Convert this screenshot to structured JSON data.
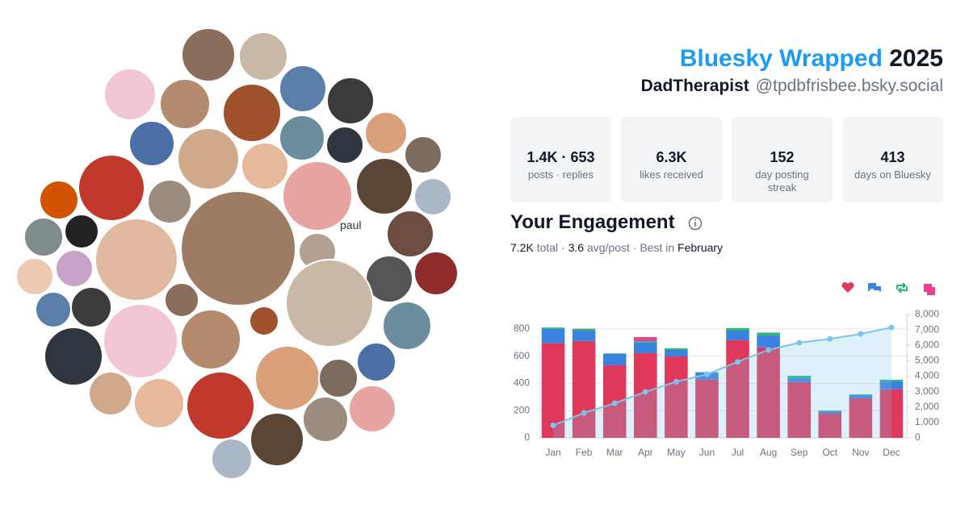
{
  "header": {
    "title": "Bluesky Wrapped",
    "year": "2025",
    "display_name": "DadTherapist",
    "handle": "@tpdbfrisbee.bsky.social"
  },
  "stats": [
    {
      "value": "1.4K · 653",
      "label": "posts · replies"
    },
    {
      "value": "6.3K",
      "label": "likes received"
    },
    {
      "value": "152",
      "label": "day posting streak"
    },
    {
      "value": "413",
      "label": "days on Bluesky"
    }
  ],
  "avatars": {
    "broken_image_alt": "paul"
  },
  "engagement": {
    "title": "Your Engagement",
    "summary": [
      "7.2K",
      " total · ",
      "3.6",
      " avg/post · Best in ",
      "February"
    ]
  },
  "chart_data": {
    "type": "bar",
    "stacked": true,
    "categories": [
      "Jan",
      "Feb",
      "Mar",
      "Apr",
      "May",
      "Jun",
      "Jul",
      "Aug",
      "Sep",
      "Oct",
      "Nov",
      "Dec"
    ],
    "series": [
      {
        "color": "#e0385a",
        "values": [
          695,
          711,
          533,
          622,
          598,
          427,
          717,
          664,
          409,
          178,
          290,
          356
        ]
      },
      {
        "color": "#3a82e0",
        "values": [
          105,
          77,
          83,
          78,
          48,
          53,
          71,
          89,
          29,
          18,
          24,
          59
        ]
      },
      {
        "color": "#2bb673",
        "values": [
          10,
          12,
          4,
          10,
          12,
          2,
          18,
          20,
          18,
          4,
          5,
          12
        ]
      },
      {
        "color": "#e84393",
        "values": [
          0,
          2,
          0,
          30,
          0,
          0,
          0,
          0,
          0,
          0,
          0,
          0
        ]
      },
      {
        "type": "line",
        "axis": "y2",
        "color": "#7cc4ea",
        "values": [
          810,
          1620,
          2240,
          2980,
          3640,
          4120,
          4930,
          5700,
          6170,
          6420,
          6740,
          7160
        ]
      }
    ],
    "ylim": [
      0,
      906
    ],
    "yticks": [
      0,
      200,
      400,
      600,
      800
    ],
    "y2lim": [
      0,
      8000
    ],
    "y2ticks": [
      0,
      {
        "value": 1000,
        "label": "1,000"
      },
      {
        "value": 2000,
        "label": "2,000"
      },
      {
        "value": 3000,
        "label": "3,000"
      },
      {
        "value": 4000,
        "label": "4,000"
      },
      {
        "value": 5000,
        "label": "5,000"
      },
      {
        "value": 6000,
        "label": "6,000"
      },
      {
        "value": 7000,
        "label": "7,000"
      },
      {
        "value": 8000,
        "label": "8,000"
      }
    ],
    "grid": true
  }
}
